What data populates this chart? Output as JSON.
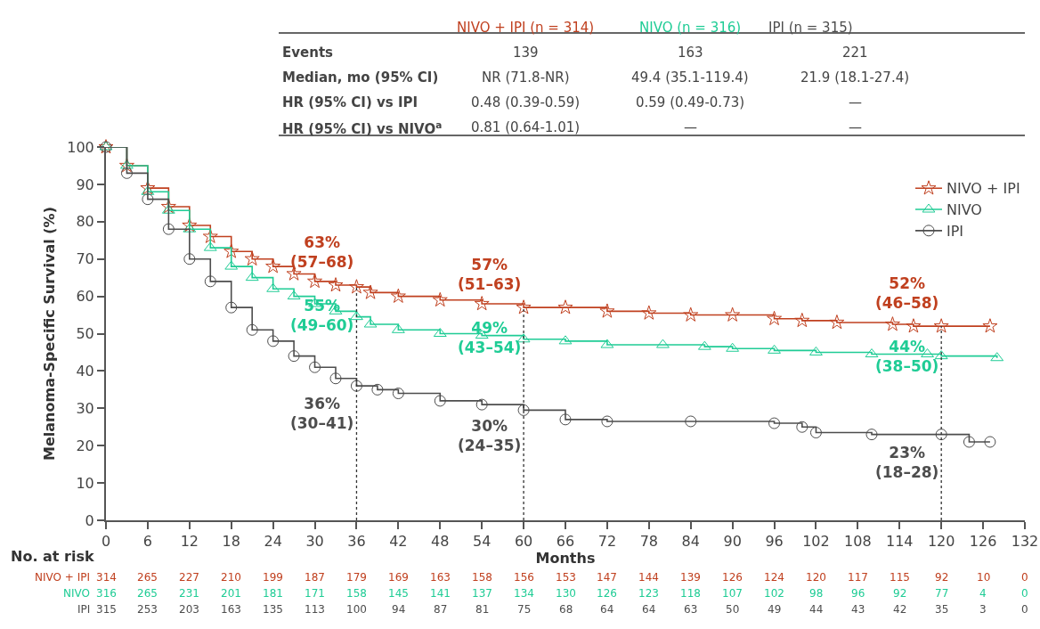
{
  "chart_data": {
    "type": "step",
    "xlabel": "Months",
    "ylabel": "Melanoma-Specific Survival (%)",
    "xlim": [
      0,
      132
    ],
    "xticks": [
      0,
      6,
      12,
      18,
      24,
      30,
      36,
      42,
      48,
      54,
      60,
      66,
      72,
      78,
      84,
      90,
      96,
      102,
      108,
      114,
      120,
      126,
      132
    ],
    "ylim": [
      0,
      100
    ],
    "yticks": [
      0,
      10,
      20,
      30,
      40,
      50,
      60,
      70,
      80,
      90,
      100
    ],
    "grid": false,
    "legend": "top right",
    "line_style": "solid",
    "series": [
      {
        "name": "NIVO + IPI",
        "color": "#c0401f",
        "marker": "star",
        "x": [
          0,
          3,
          6,
          9,
          12,
          15,
          18,
          21,
          24,
          27,
          30,
          33,
          36,
          38,
          42,
          48,
          54,
          60,
          66,
          72,
          78,
          84,
          90,
          96,
          100,
          105,
          113,
          116,
          120,
          127
        ],
        "values": [
          100,
          95,
          89,
          84,
          79,
          76,
          72,
          70,
          68,
          66,
          64,
          63,
          62.5,
          61,
          60,
          59,
          58,
          57,
          57,
          56,
          55.5,
          55,
          55,
          54,
          53.5,
          53,
          52.5,
          52,
          52,
          52
        ]
      },
      {
        "name": "NIVO",
        "color": "#1fcc95",
        "marker": "triangle",
        "x": [
          0,
          3,
          6,
          9,
          12,
          15,
          18,
          21,
          24,
          27,
          30,
          33,
          36,
          38,
          42,
          48,
          54,
          60,
          66,
          72,
          80,
          86,
          90,
          96,
          102,
          110,
          118,
          120,
          128
        ],
        "values": [
          100,
          95,
          88,
          83,
          78,
          73,
          68,
          65,
          62,
          60,
          58,
          56,
          54.5,
          52.5,
          51,
          50,
          49.5,
          48.5,
          48,
          47,
          47,
          46.5,
          46,
          45.5,
          45,
          44.5,
          44.5,
          44,
          43.5
        ]
      },
      {
        "name": "IPI",
        "color": "#4d4d4d",
        "marker": "circle",
        "x": [
          0,
          3,
          6,
          9,
          12,
          15,
          18,
          21,
          24,
          27,
          30,
          33,
          36,
          39,
          42,
          48,
          54,
          60,
          66,
          72,
          84,
          96,
          100,
          102,
          110,
          120,
          124,
          127
        ],
        "values": [
          100,
          93,
          86,
          78,
          70,
          64,
          57,
          51,
          48,
          44,
          41,
          38,
          36,
          35,
          34,
          32,
          31,
          29.5,
          27,
          26.5,
          26.5,
          26,
          25,
          23.5,
          23,
          23,
          21,
          21
        ]
      }
    ],
    "ref_lines": [
      {
        "axis": "x",
        "value": 36,
        "line_style": "dotted",
        "color": "#333333"
      },
      {
        "axis": "x",
        "value": 60,
        "line_style": "dotted",
        "color": "#333333"
      },
      {
        "axis": "x",
        "value": 120,
        "line_style": "dotted",
        "color": "#333333"
      }
    ],
    "annotations": [
      {
        "text": "63%\n(57–68)",
        "x": 36,
        "y": 63
      },
      {
        "text": "55%\n(49–60)",
        "x": 36,
        "y": 55
      },
      {
        "text": "36%\n(30–41)",
        "x": 36,
        "y": 36
      },
      {
        "text": "57%\n(51–63)",
        "x": 60,
        "y": 57
      },
      {
        "text": "49%\n(43–54)",
        "x": 60,
        "y": 49
      },
      {
        "text": "30%\n(24–35)",
        "x": 60,
        "y": 30
      },
      {
        "text": "52%\n(46–58)",
        "x": 120,
        "y": 52
      },
      {
        "text": "44%\n(38–50)",
        "x": 120,
        "y": 44
      },
      {
        "text": "23%\n(18–28)",
        "x": 120,
        "y": 23
      },
      "NIVO + IPI (n = 314)",
      "NIVO (n = 316)",
      "IPI (n = 315)",
      "Events",
      "139",
      "163",
      "221",
      "Median, mo (95% CI)",
      "NR (71.8-NR)",
      "49.4 (35.1-119.4)",
      "21.9 (18.1-27.4)",
      "HR (95% CI) vs IPI",
      "0.48 (0.39-0.59)",
      "0.59 (0.49-0.73)",
      "—",
      "HR (95% CI) vs NIVO$^{a}$",
      "0.81 (0.64-1.01)",
      "—",
      "—",
      "No. at risk",
      "NIVO + IPI",
      "314",
      "265",
      "227",
      "210",
      "199",
      "187",
      "179",
      "169",
      "163",
      "158",
      "156",
      "153",
      "147",
      "144",
      "139",
      "126",
      "124",
      "120",
      "117",
      "115",
      "92",
      "10",
      "0",
      "NIVO",
      "316",
      "265",
      "231",
      "201",
      "181",
      "171",
      "158",
      "145",
      "141",
      "137",
      "134",
      "130",
      "126",
      "123",
      "118",
      "107",
      "102",
      "98",
      "96",
      "92",
      "77",
      "4",
      "0",
      "IPI",
      "315",
      "253",
      "203",
      "163",
      "135",
      "113",
      "100",
      "94",
      "87",
      "81",
      "75",
      "68",
      "64",
      "64",
      "63",
      "50",
      "49",
      "44",
      "43",
      "42",
      "35",
      "3",
      "0"
    ]
  }
}
